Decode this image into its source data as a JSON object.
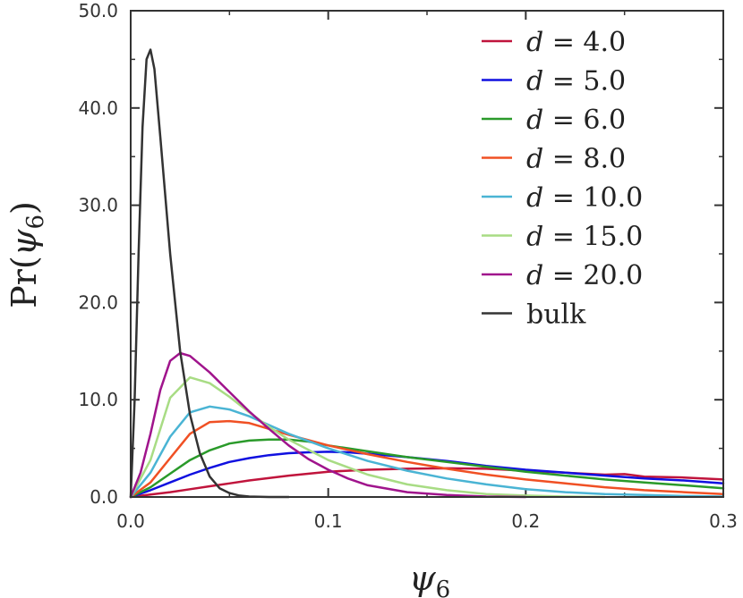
{
  "chart_data": {
    "type": "line",
    "title": "",
    "xlabel": "ψ6",
    "ylabel": "Pr(ψ6)",
    "xlim": [
      0.0,
      0.3
    ],
    "ylim": [
      0.0,
      50.0
    ],
    "x_ticks": [
      "0.0",
      "0.1",
      "0.2",
      "0.3"
    ],
    "x_tick_values": [
      0.0,
      0.1,
      0.2,
      0.3
    ],
    "y_ticks": [
      "0.0",
      "10.0",
      "20.0",
      "30.0",
      "40.0",
      "50.0"
    ],
    "y_tick_values": [
      0,
      10,
      20,
      30,
      40,
      50
    ],
    "legend_position": "top-right",
    "series": [
      {
        "name": "d = 4.0",
        "color": "#c0143c",
        "x": [
          0,
          0.01,
          0.02,
          0.03,
          0.04,
          0.05,
          0.06,
          0.08,
          0.1,
          0.12,
          0.14,
          0.16,
          0.18,
          0.2,
          0.22,
          0.24,
          0.25,
          0.26,
          0.28,
          0.3
        ],
        "y": [
          0,
          0.25,
          0.5,
          0.8,
          1.1,
          1.4,
          1.7,
          2.2,
          2.6,
          2.8,
          2.9,
          2.95,
          2.9,
          2.7,
          2.5,
          2.3,
          2.35,
          2.1,
          2.0,
          1.8
        ]
      },
      {
        "name": "d = 5.0",
        "color": "#1010e0",
        "x": [
          0,
          0.01,
          0.02,
          0.03,
          0.04,
          0.05,
          0.06,
          0.07,
          0.08,
          0.09,
          0.1,
          0.11,
          0.12,
          0.14,
          0.16,
          0.18,
          0.2,
          0.22,
          0.24,
          0.26,
          0.28,
          0.3
        ],
        "y": [
          0,
          0.7,
          1.5,
          2.3,
          3.0,
          3.6,
          4.0,
          4.3,
          4.5,
          4.6,
          4.65,
          4.6,
          4.45,
          4.1,
          3.7,
          3.2,
          2.8,
          2.5,
          2.2,
          1.9,
          1.7,
          1.4
        ]
      },
      {
        "name": "d = 6.0",
        "color": "#2a9a2a",
        "x": [
          0,
          0.01,
          0.02,
          0.03,
          0.04,
          0.05,
          0.06,
          0.07,
          0.08,
          0.09,
          0.1,
          0.12,
          0.14,
          0.16,
          0.18,
          0.2,
          0.22,
          0.24,
          0.26,
          0.28,
          0.3
        ],
        "y": [
          0,
          1.0,
          2.4,
          3.8,
          4.8,
          5.5,
          5.8,
          5.9,
          5.9,
          5.7,
          5.3,
          4.7,
          4.1,
          3.6,
          3.1,
          2.6,
          2.2,
          1.8,
          1.5,
          1.2,
          0.9
        ]
      },
      {
        "name": "d = 8.0",
        "color": "#f05024",
        "x": [
          0,
          0.01,
          0.02,
          0.03,
          0.04,
          0.05,
          0.06,
          0.07,
          0.08,
          0.1,
          0.12,
          0.14,
          0.16,
          0.18,
          0.2,
          0.22,
          0.24,
          0.26,
          0.28,
          0.3
        ],
        "y": [
          0,
          1.5,
          4.0,
          6.5,
          7.7,
          7.8,
          7.6,
          7.0,
          6.4,
          5.3,
          4.4,
          3.6,
          2.9,
          2.3,
          1.8,
          1.4,
          1.0,
          0.7,
          0.5,
          0.3
        ]
      },
      {
        "name": "d = 10.0",
        "color": "#4ab4d4",
        "x": [
          0,
          0.01,
          0.02,
          0.03,
          0.04,
          0.05,
          0.06,
          0.07,
          0.08,
          0.1,
          0.12,
          0.14,
          0.16,
          0.18,
          0.2,
          0.22,
          0.24,
          0.26,
          0.28,
          0.3
        ],
        "y": [
          0,
          2.5,
          6.2,
          8.7,
          9.3,
          9.0,
          8.3,
          7.4,
          6.5,
          5.0,
          3.7,
          2.7,
          1.9,
          1.3,
          0.8,
          0.5,
          0.3,
          0.2,
          0.1,
          0.05
        ]
      },
      {
        "name": "d = 15.0",
        "color": "#a8dc84",
        "x": [
          0,
          0.01,
          0.02,
          0.03,
          0.04,
          0.05,
          0.06,
          0.07,
          0.08,
          0.1,
          0.12,
          0.14,
          0.16,
          0.18,
          0.2,
          0.22,
          0.24
        ],
        "y": [
          0,
          3.8,
          10.2,
          12.3,
          11.7,
          10.3,
          8.7,
          7.2,
          5.9,
          3.8,
          2.3,
          1.3,
          0.7,
          0.3,
          0.15,
          0.05,
          0
        ]
      },
      {
        "name": "d = 20.0",
        "color": "#a0148c",
        "x": [
          0,
          0.005,
          0.01,
          0.015,
          0.02,
          0.025,
          0.03,
          0.04,
          0.05,
          0.06,
          0.07,
          0.08,
          0.09,
          0.1,
          0.11,
          0.12,
          0.14,
          0.16,
          0.18,
          0.2
        ],
        "y": [
          0,
          2.5,
          6.5,
          11.0,
          14.0,
          14.8,
          14.5,
          12.8,
          10.8,
          8.8,
          7.0,
          5.3,
          3.9,
          2.8,
          1.9,
          1.2,
          0.5,
          0.2,
          0.05,
          0
        ]
      },
      {
        "name": "bulk",
        "color": "#333333",
        "x": [
          0,
          0.002,
          0.004,
          0.006,
          0.008,
          0.01,
          0.012,
          0.015,
          0.02,
          0.025,
          0.03,
          0.035,
          0.04,
          0.045,
          0.05,
          0.055,
          0.06,
          0.065,
          0.07,
          0.08
        ],
        "y": [
          0,
          10,
          25,
          38,
          45,
          46,
          44,
          37,
          25,
          15,
          8.5,
          4.5,
          2.1,
          0.9,
          0.4,
          0.15,
          0.05,
          0.02,
          0,
          0
        ]
      }
    ]
  }
}
